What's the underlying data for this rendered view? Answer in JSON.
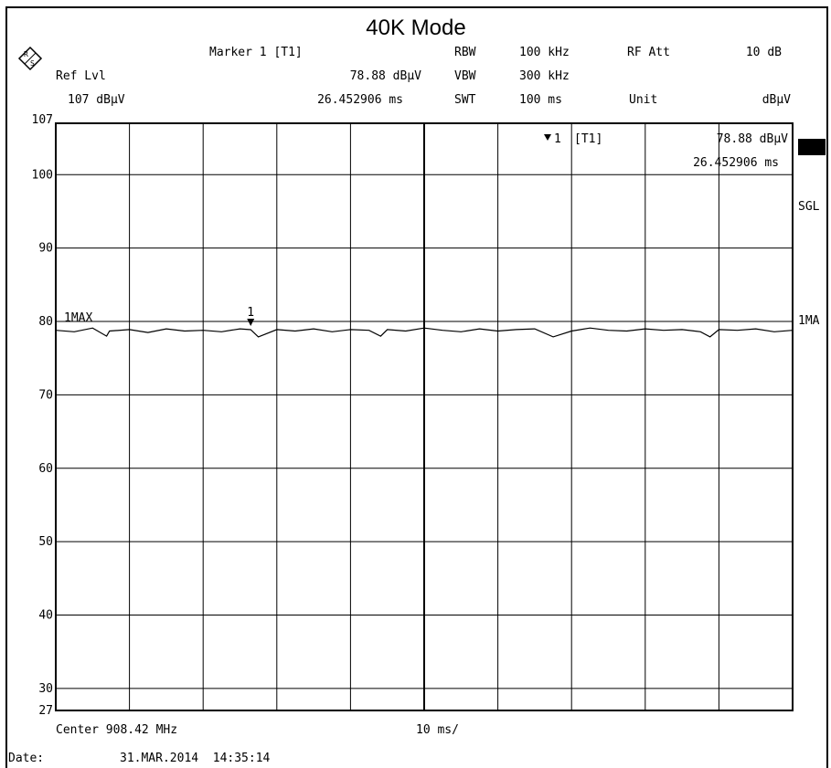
{
  "title": "40K Mode",
  "header": {
    "ref_label": "Ref Lvl",
    "ref_value": "107 dBµV",
    "marker_label": "Marker 1 [T1]",
    "marker_level": "78.88 dBµV",
    "marker_time": "26.452906 ms",
    "rbw_label": "RBW",
    "rbw_value": "100 kHz",
    "vbw_label": "VBW",
    "vbw_value": "300 kHz",
    "swt_label": "SWT",
    "swt_value": "100 ms",
    "rfatt_label": "RF Att",
    "rfatt_value": "10 dB",
    "unit_label": "Unit",
    "unit_value": "dBµV"
  },
  "plot": {
    "marker_box_id": "1",
    "marker_box_trace": "[T1]",
    "marker_box_level": "78.88 dBµV",
    "marker_box_time": "26.452906 ms",
    "trace_label": "1MAX",
    "marker_number": "1"
  },
  "side": {
    "sgl": "SGL",
    "trace_mode": "1MA"
  },
  "footer": {
    "center": "Center 908.42 MHz",
    "span": "10 ms/",
    "date_label": "Date:",
    "date_value": "31.MAR.2014  14:35:14"
  },
  "chart_data": {
    "type": "line",
    "title": "40K Mode",
    "x_unit": "ms",
    "x_range": [
      0,
      100
    ],
    "x_div": "10 ms/",
    "ylim": [
      27,
      107
    ],
    "yticks": [
      "107",
      "100",
      "90",
      "80",
      "70",
      "60",
      "50",
      "40",
      "30",
      "27"
    ],
    "ytick_values": [
      107,
      100,
      90,
      80,
      70,
      60,
      50,
      40,
      30,
      27
    ],
    "grid": true,
    "series": [
      {
        "name": "1MAX",
        "x": [
          0,
          2.5,
          5,
          6.9,
          7.3,
          10,
          12.5,
          15,
          17.5,
          20,
          22.5,
          25,
          26.45,
          27.5,
          30,
          32.5,
          35,
          37.5,
          40,
          42.5,
          44.1,
          45,
          47.5,
          50,
          52.5,
          55,
          57.5,
          60,
          62.5,
          65,
          67.5,
          70,
          72.5,
          75,
          77.5,
          80,
          82.5,
          85,
          87.5,
          88.8,
          90,
          92.5,
          95,
          97.5,
          100
        ],
        "values": [
          78.8,
          78.6,
          79.1,
          78.0,
          78.7,
          78.9,
          78.5,
          79.0,
          78.7,
          78.8,
          78.6,
          79.0,
          78.88,
          77.9,
          78.9,
          78.7,
          79.0,
          78.6,
          78.9,
          78.8,
          78.0,
          78.9,
          78.7,
          79.1,
          78.8,
          78.6,
          79.0,
          78.7,
          78.9,
          79.0,
          77.9,
          78.7,
          79.1,
          78.8,
          78.7,
          79.0,
          78.8,
          78.9,
          78.6,
          77.9,
          78.9,
          78.8,
          79.0,
          78.6,
          78.8
        ]
      }
    ],
    "markers": [
      {
        "label": "1",
        "trace": "T1",
        "x": 26.452906,
        "y": 78.88
      }
    ]
  }
}
